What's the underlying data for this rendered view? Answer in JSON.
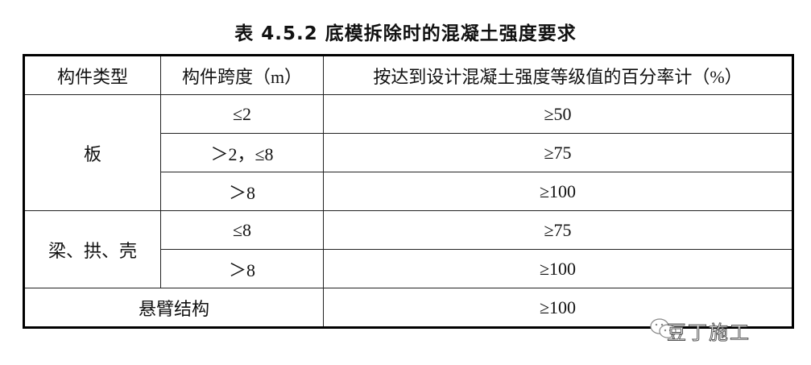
{
  "title": "表 4.5.2 底模拆除时的混凝土强度要求",
  "table": {
    "headers": [
      "构件类型",
      "构件跨度（m）",
      "按达到设计混凝土强度等级值的百分率计（%）"
    ],
    "groups": [
      {
        "type": "板",
        "rows": [
          {
            "span": "≤2",
            "percent": "≥50"
          },
          {
            "span": "＞2，≤8",
            "percent": "≥75"
          },
          {
            "span": "＞8",
            "percent": "≥100"
          }
        ]
      },
      {
        "type": "梁、拱、壳",
        "rows": [
          {
            "span": "≤8",
            "percent": "≥75"
          },
          {
            "span": "＞8",
            "percent": "≥100"
          }
        ]
      },
      {
        "type": "悬臂结构",
        "rows": [
          {
            "span": "",
            "percent": "≥100"
          }
        ]
      }
    ]
  },
  "watermark": {
    "text": "豆丁施工",
    "icon": "wechat-icon"
  }
}
